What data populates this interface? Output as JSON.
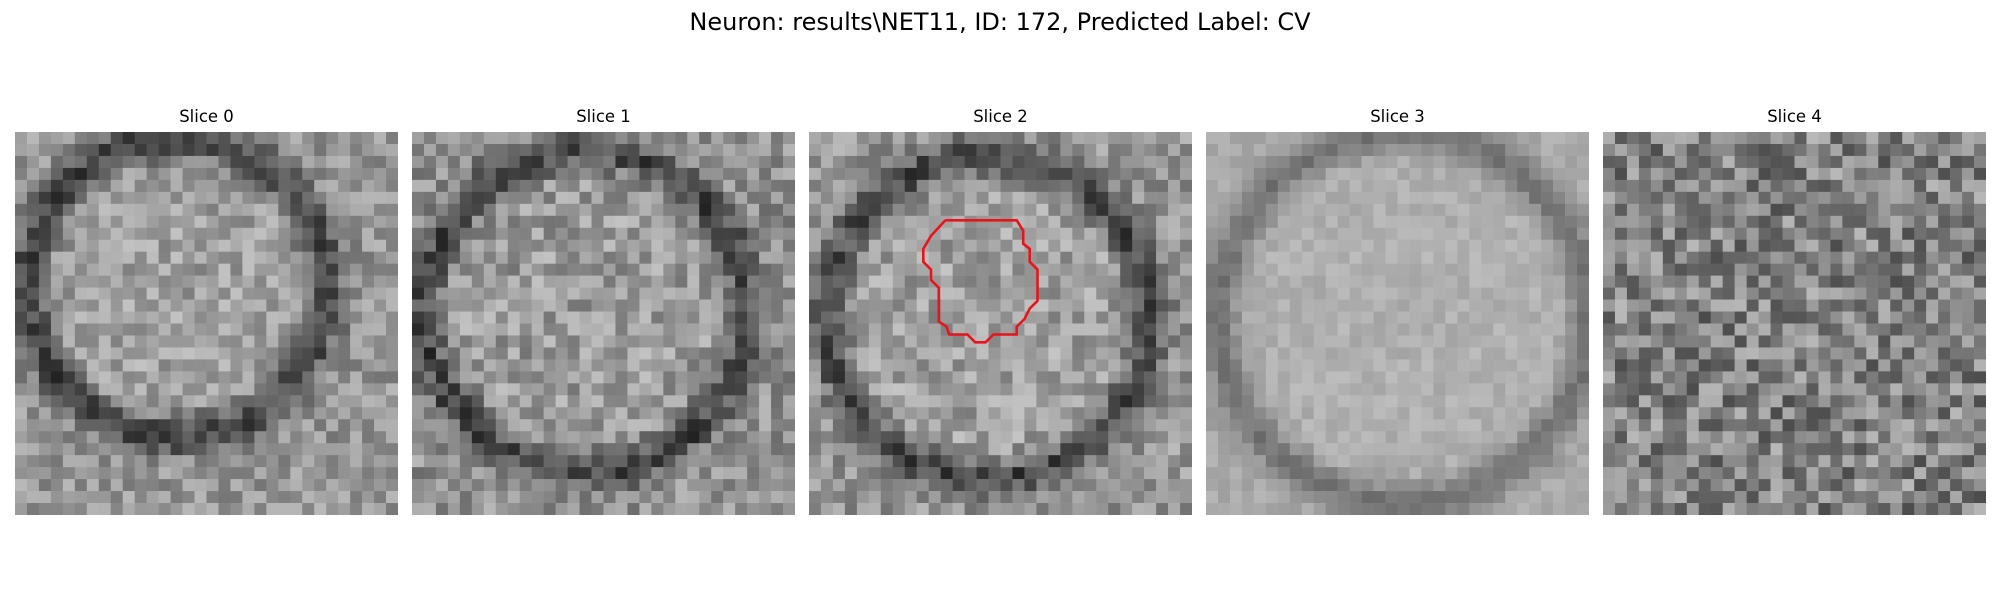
{
  "figure": {
    "title": "Neuron: results\\NET11, ID: 172, Predicted Label: CV"
  },
  "panels": [
    {
      "title": "Slice 0",
      "pattern": "ring"
    },
    {
      "title": "Slice 1",
      "pattern": "ring"
    },
    {
      "title": "Slice 2",
      "pattern": "ring"
    },
    {
      "title": "Slice 3",
      "pattern": "ring-smooth"
    },
    {
      "title": "Slice 4",
      "pattern": "noise"
    }
  ],
  "overlay": {
    "panel": 2,
    "color": "#e8141c"
  },
  "colormap": "gray"
}
